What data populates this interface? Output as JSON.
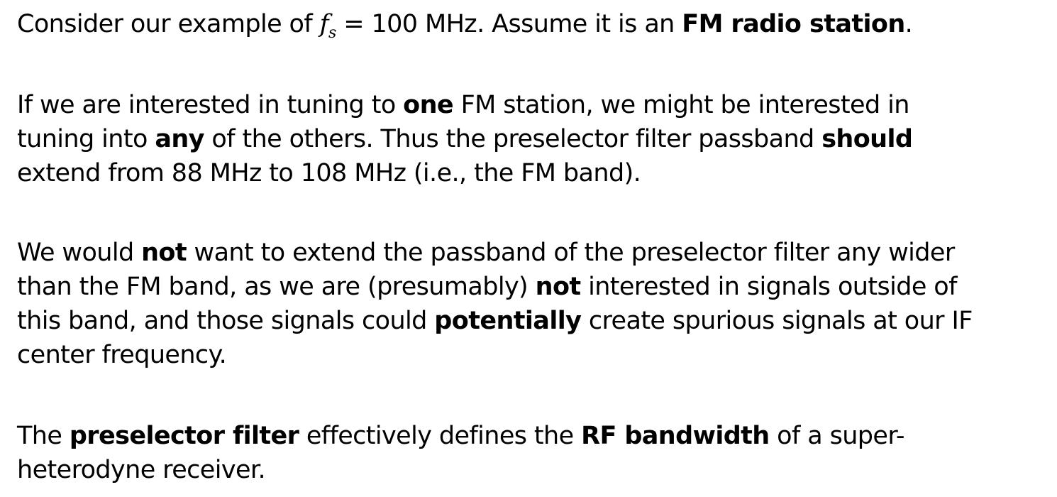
{
  "p1": {
    "l1": {
      "a": "Consider our example of ",
      "f": "f",
      "s": "s",
      "b": " = 100 MHz.  Assume it is an ",
      "c": "FM radio station",
      "d": "."
    }
  },
  "p2": {
    "l1": {
      "a": "If we are interested in tuning to ",
      "b": "one",
      "c": " FM station, we might be interested in"
    },
    "l2": {
      "a": "tuning into ",
      "b": "any",
      "c": " of the others. Thus the preselector filter passband ",
      "d": "should"
    },
    "l3": {
      "a": "extend from 88 MHz to 108 MHz (i.e., the FM band)."
    }
  },
  "p3": {
    "l1": {
      "a": "We would ",
      "b": "not",
      "c": " want to extend the passband of the preselector filter any wider"
    },
    "l2": {
      "a": "than the FM band, as we are (presumably) ",
      "b": "not",
      "c": " interested in signals outside of"
    },
    "l3": {
      "a": "this band, and those signals could ",
      "b": "potentially",
      "c": " create spurious signals at our IF"
    },
    "l4": {
      "a": "center frequency."
    }
  },
  "p4": {
    "l1": {
      "a": "The ",
      "b": "preselector filter",
      "c": " effectively defines the ",
      "d": "RF bandwidth",
      "e": " of a super-"
    },
    "l2": {
      "a": "heterodyne receiver."
    }
  }
}
